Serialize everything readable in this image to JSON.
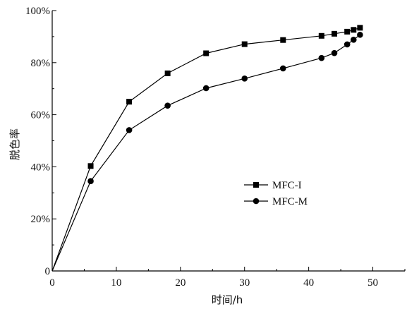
{
  "chart_data": {
    "type": "line",
    "xlabel": "时间/h",
    "ylabel": "脱色率",
    "xlim": [
      0,
      55
    ],
    "ylim": [
      0,
      100
    ],
    "x_ticks": [
      "0",
      "10",
      "20",
      "30",
      "40",
      "50"
    ],
    "y_ticks": [
      "0",
      "20%",
      "40%",
      "60%",
      "80%",
      "100%"
    ],
    "grid": false,
    "legend_position": "center-right",
    "series": [
      {
        "name": "MFC-I",
        "marker": "square",
        "color": "#000000",
        "x": [
          0,
          6,
          12,
          18,
          24,
          30,
          36,
          42,
          44,
          46,
          47,
          48
        ],
        "y": [
          0,
          40.3,
          65.0,
          75.9,
          83.6,
          87.1,
          88.7,
          90.3,
          91.1,
          91.9,
          92.6,
          93.4
        ]
      },
      {
        "name": "MFC-M",
        "marker": "circle",
        "color": "#000000",
        "x": [
          0,
          6,
          12,
          18,
          24,
          30,
          36,
          42,
          44,
          46,
          47,
          48
        ],
        "y": [
          0,
          34.5,
          54.1,
          63.5,
          70.2,
          73.9,
          77.8,
          81.8,
          83.7,
          87.0,
          88.8,
          90.7
        ]
      }
    ]
  }
}
